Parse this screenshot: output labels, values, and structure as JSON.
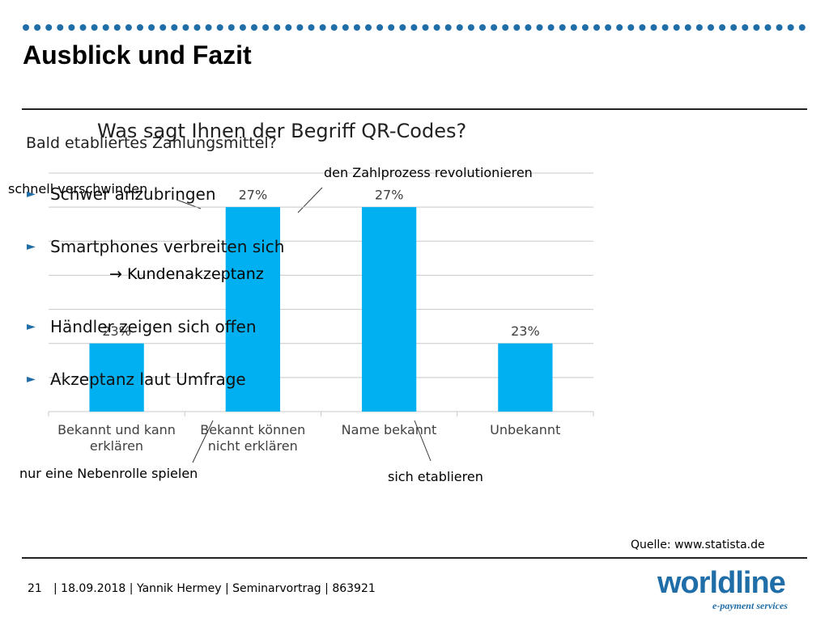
{
  "header": {
    "title": "Ausblick und Fazit"
  },
  "questions": [
    "Was sagt Ihnen der Begriff QR-Codes?",
    "Bald etabliertes Zahlungsmittel?"
  ],
  "bullets": [
    "Schwer anzubringen",
    "Smartphones verbreiten sich",
    "Händler zeigen sich offen",
    "Akzeptanz laut Umfrage"
  ],
  "bullet_sub": "→ Kundenakzeptanz",
  "annotations": [
    "schnell verschwinden",
    "den Zahlprozess revolutionieren",
    "nur eine Nebenrolle spielen",
    "sich etablieren"
  ],
  "source": "Quelle: www.statista.de",
  "footer": {
    "page": "21",
    "text": "| 18.09.2018 | Yannik Hermey | Seminarvortrag | 863921"
  },
  "logo": {
    "name": "worldline",
    "tagline": "e-payment services"
  },
  "chart_data": {
    "type": "bar",
    "categories": [
      "Bekannt und kann erklären",
      "Bekannt können nicht erklären",
      "Name bekannt",
      "Unbekannt"
    ],
    "values": [
      23,
      27,
      27,
      23
    ],
    "value_labels": [
      "23%",
      "27%",
      "27%",
      "23%"
    ],
    "color": "#00b0f0",
    "ylim": [
      21,
      28
    ],
    "yticks": [
      21,
      22,
      23,
      24,
      25,
      26,
      27,
      28
    ],
    "grid": true
  }
}
